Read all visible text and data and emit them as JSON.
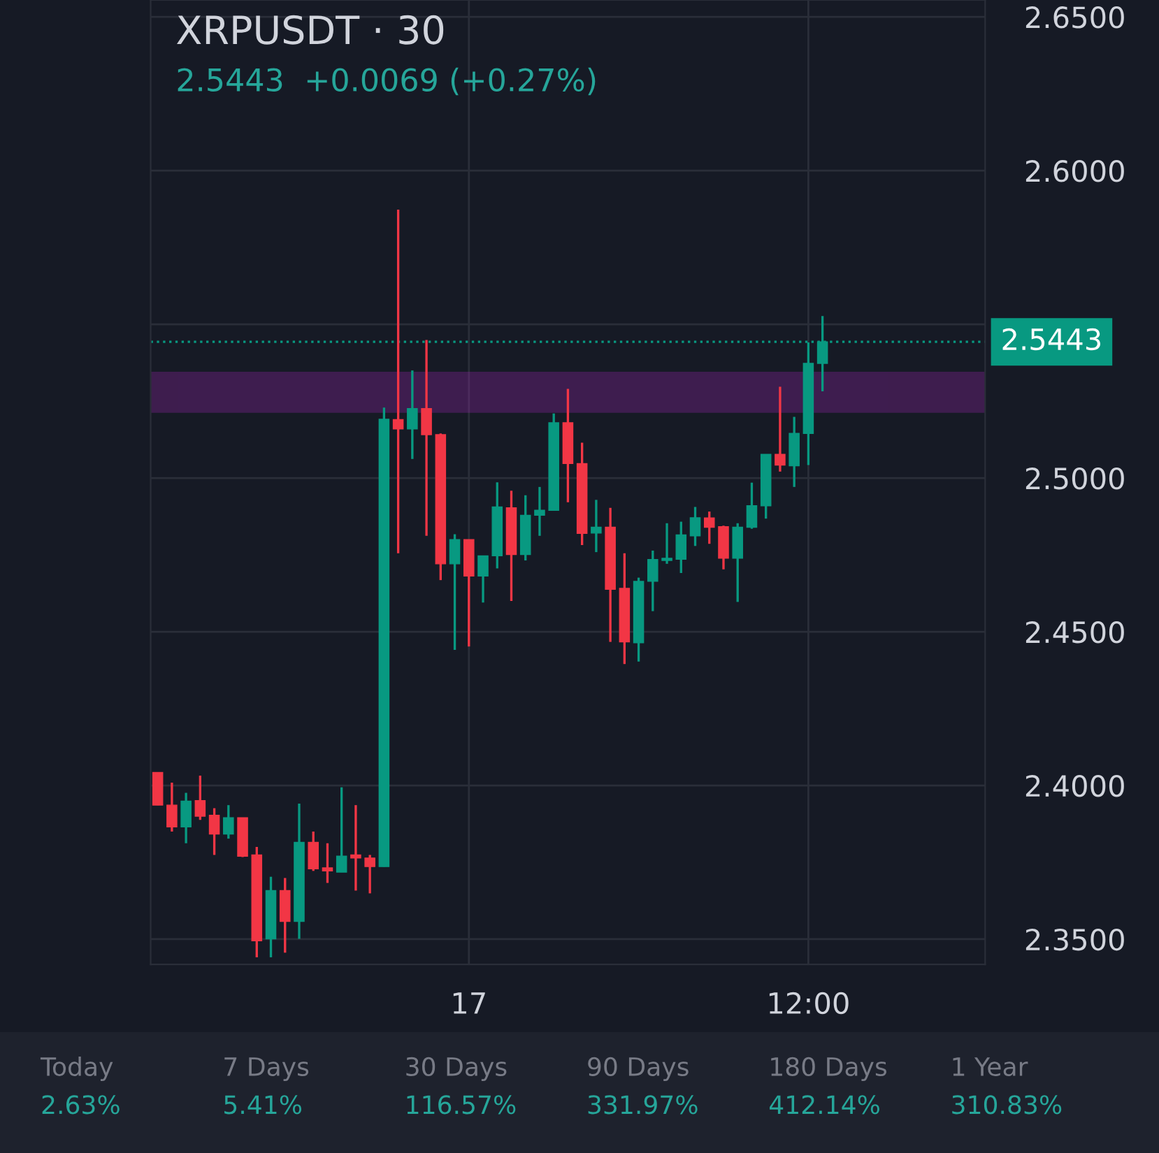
{
  "chart_data": {
    "type": "candlestick",
    "title": "XRPUSDT · 30",
    "subtitle": "2.5443  +0.0069 (+0.27%)",
    "categories": [
      null,
      null,
      null,
      null,
      null,
      null,
      null,
      null,
      null,
      null,
      null,
      null,
      null,
      null,
      null,
      null,
      null,
      null,
      null,
      null,
      null,
      null,
      "17",
      null,
      null,
      null,
      null,
      null,
      null,
      null,
      null,
      null,
      null,
      null,
      null,
      null,
      null,
      null,
      null,
      null,
      null,
      null,
      null,
      null,
      null,
      null,
      "12:00",
      null,
      null,
      null,
      null,
      null,
      null,
      null,
      null,
      null,
      null,
      null,
      null
    ],
    "ohlc": [
      [
        2.4042,
        2.4042,
        2.3936,
        2.3936
      ],
      [
        2.3936,
        2.4009,
        2.385,
        2.3865
      ],
      [
        2.3865,
        2.3976,
        2.3812,
        2.3949
      ],
      [
        2.3951,
        2.4032,
        2.3888,
        2.39
      ],
      [
        2.3903,
        2.3926,
        2.3774,
        2.3842
      ],
      [
        2.3842,
        2.3936,
        2.3827,
        2.3895
      ],
      [
        2.3895,
        2.3895,
        2.3767,
        2.377
      ],
      [
        2.3774,
        2.38,
        2.3441,
        2.3495
      ],
      [
        2.3501,
        2.3703,
        2.3441,
        2.3658
      ],
      [
        2.3658,
        2.3699,
        2.3456,
        2.3558
      ],
      [
        2.3558,
        2.3941,
        2.3501,
        2.3815
      ],
      [
        2.3815,
        2.385,
        2.3722,
        2.3729
      ],
      [
        2.3732,
        2.3812,
        2.3683,
        2.3722
      ],
      [
        2.3718,
        2.3994,
        2.3718,
        2.377
      ],
      [
        2.3774,
        2.3936,
        2.3658,
        2.3764
      ],
      [
        2.3764,
        2.3774,
        2.3649,
        2.3736
      ],
      [
        2.3736,
        2.5229,
        2.3736,
        2.5191
      ],
      [
        2.519,
        2.5873,
        2.4755,
        2.516
      ],
      [
        2.516,
        2.535,
        2.5062,
        2.5226
      ],
      [
        2.5226,
        2.5449,
        2.4812,
        2.5141
      ],
      [
        2.5141,
        2.5145,
        2.4668,
        2.4721
      ],
      [
        2.4721,
        2.4817,
        2.4441,
        2.48
      ],
      [
        2.48,
        2.48,
        2.4452,
        2.4681
      ],
      [
        2.4681,
        2.4747,
        2.4595,
        2.4747
      ],
      [
        2.4747,
        2.4986,
        2.4706,
        2.4906
      ],
      [
        2.4903,
        2.4959,
        2.46,
        2.4751
      ],
      [
        2.4751,
        2.4944,
        2.4732,
        2.4879
      ],
      [
        2.4879,
        2.4971,
        2.4812,
        2.4895
      ],
      [
        2.4895,
        2.521,
        2.4895,
        2.518
      ],
      [
        2.518,
        2.529,
        2.4921,
        2.5047
      ],
      [
        2.5047,
        2.5115,
        2.4782,
        2.482
      ],
      [
        2.4821,
        2.4929,
        2.4759,
        2.484
      ],
      [
        2.484,
        2.4903,
        2.4467,
        2.4638
      ],
      [
        2.4641,
        2.4755,
        2.4395,
        2.4467
      ],
      [
        2.4464,
        2.4676,
        2.4403,
        2.4664
      ],
      [
        2.4664,
        2.4764,
        2.4567,
        2.4735
      ],
      [
        2.4732,
        2.4853,
        2.4721,
        2.4739
      ],
      [
        2.4736,
        2.4858,
        2.4691,
        2.4815
      ],
      [
        2.4812,
        2.4906,
        2.4779,
        2.4871
      ],
      [
        2.487,
        2.4891,
        2.4786,
        2.484
      ],
      [
        2.4842,
        2.4845,
        2.4703,
        2.4739
      ],
      [
        2.4739,
        2.4853,
        2.4597,
        2.484
      ],
      [
        2.484,
        2.4985,
        2.4835,
        2.491
      ],
      [
        2.491,
        2.5077,
        2.4868,
        2.5077
      ],
      [
        2.5077,
        2.5297,
        2.5021,
        2.5042
      ],
      [
        2.504,
        2.5199,
        2.4971,
        2.5145
      ],
      [
        2.5145,
        2.5441,
        2.5042,
        2.5373
      ],
      [
        2.5373,
        2.5527,
        2.5282,
        2.5443
      ],
      null,
      null,
      null,
      null,
      null,
      null,
      null,
      null,
      null,
      null,
      null
    ],
    "colors": [
      "#f23645",
      "#f23645",
      "#089981",
      "#f23645",
      "#f23645",
      "#089981",
      "#f23645",
      "#f23645",
      "#089981",
      "#f23645",
      "#089981",
      "#f23645",
      "#f23645",
      "#089981",
      "#f23645",
      "#f23645",
      "#089981",
      "#f23645",
      "#089981",
      "#f23645",
      "#f23645",
      "#089981",
      "#f23645",
      "#089981",
      "#089981",
      "#f23645",
      "#089981",
      "#089981",
      "#089981",
      "#f23645",
      "#f23645",
      "#089981",
      "#f23645",
      "#f23645",
      "#089981",
      "#089981",
      "#089981",
      "#089981",
      "#089981",
      "#f23645",
      "#f23645",
      "#089981",
      "#089981",
      "#089981",
      "#f23645",
      "#089981",
      "#089981",
      "#089981",
      null,
      null,
      null,
      null,
      null,
      null,
      null,
      null,
      null,
      null,
      null
    ],
    "ylim": [
      2.3418,
      2.6555
    ],
    "yticks": [
      {
        "value": 2.35,
        "label": "2.3500"
      },
      {
        "value": 2.4,
        "label": "2.4000"
      },
      {
        "value": 2.45,
        "label": "2.4500"
      },
      {
        "value": 2.5,
        "label": "2.5000"
      },
      {
        "value": 2.55,
        "label": null
      },
      {
        "value": 2.6,
        "label": "2.6000"
      },
      {
        "value": 2.65,
        "label": "2.6500"
      }
    ],
    "grid": true,
    "ref_lines": [
      {
        "axis": "y",
        "value": 2.5443,
        "label": "2.5443",
        "color": "#089981",
        "line_style": "dotted"
      }
    ],
    "bands": [
      {
        "axis": "y",
        "from": 2.5217,
        "to": 2.5341,
        "color": "#9c27b0"
      }
    ],
    "annotations": [
      "Today",
      "2.63%",
      "7 Days",
      "5.41%",
      "30 Days",
      "116.57%",
      "90 Days",
      "331.97%",
      "180 Days",
      "412.14%",
      "1 Year",
      "310.83%"
    ]
  }
}
